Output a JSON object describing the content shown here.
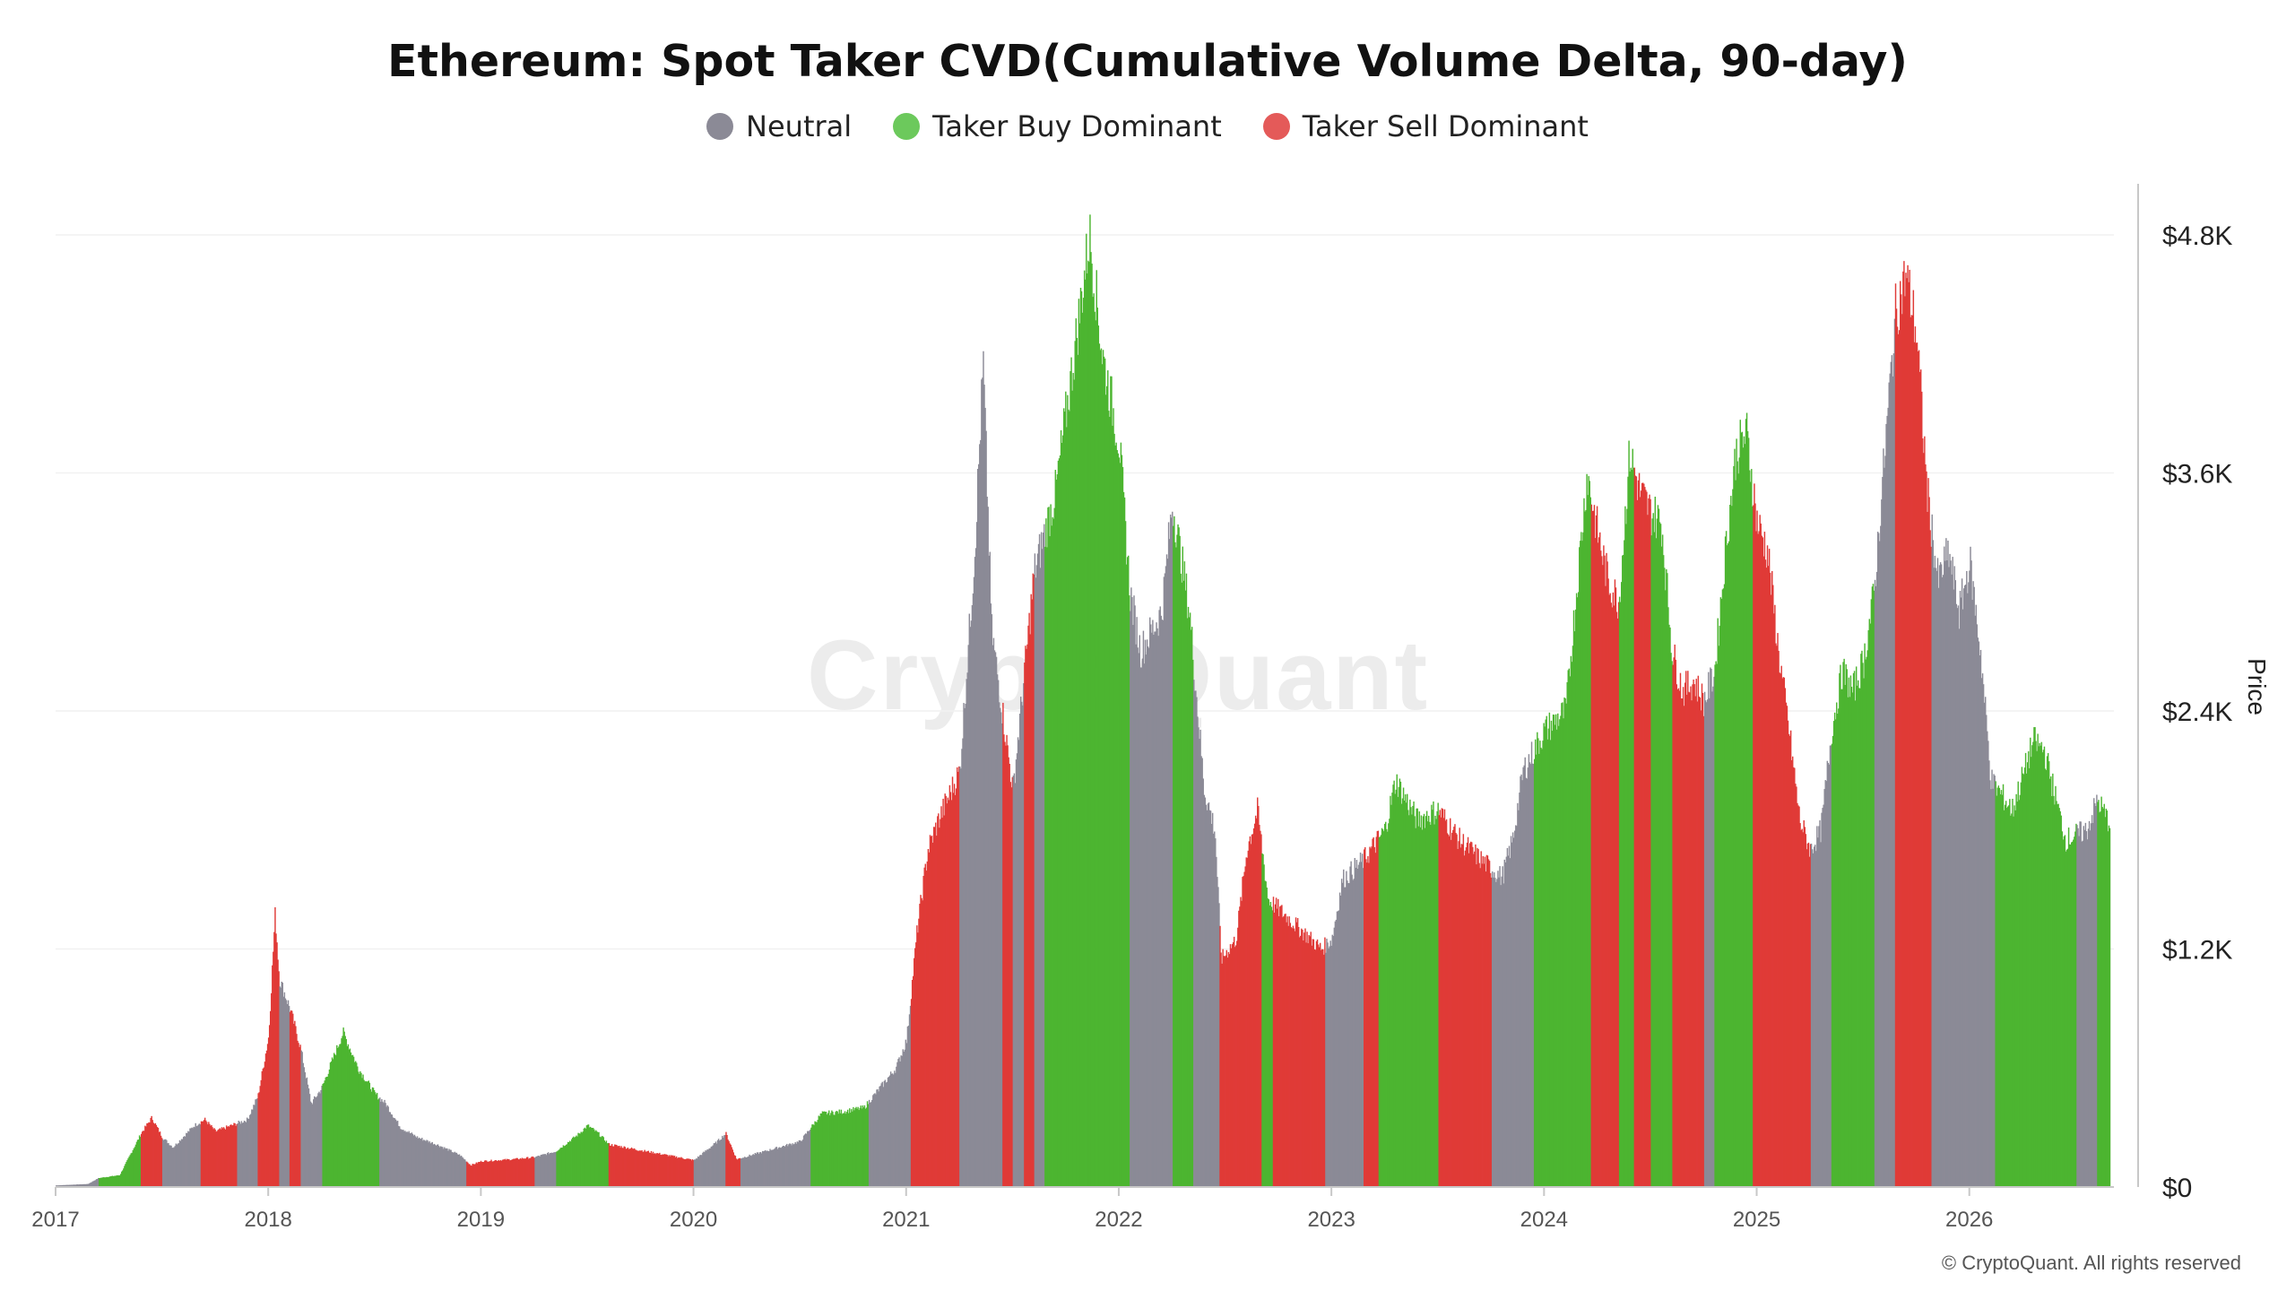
{
  "chart_data": {
    "type": "bar",
    "title": "Ethereum: Spot Taker CVD(Cumulative Volume Delta, 90-day)",
    "ylabel": "Price",
    "xlim": [
      2017.0,
      2026.68
    ],
    "ylim": [
      0,
      4800
    ],
    "yticks": [
      0,
      1200,
      2400,
      3600,
      4800
    ],
    "ytick_labels": [
      "$0",
      "$1.2K",
      "$2.4K",
      "$3.6K",
      "$4.8K"
    ],
    "xtick_labels": [
      "2017",
      "2018",
      "2019",
      "2020",
      "2021",
      "2022",
      "2023",
      "2024",
      "2025",
      "2026"
    ],
    "grid": true,
    "legend_position": "top",
    "series": [
      {
        "name": "Neutral",
        "color": "#8b8a96"
      },
      {
        "name": "Taker Buy Dominant",
        "color": "#4cb530"
      },
      {
        "name": "Taker Sell Dominant",
        "color": "#e03a37"
      }
    ],
    "price_points": [
      [
        2017.0,
        8
      ],
      [
        2017.15,
        15
      ],
      [
        2017.2,
        45
      ],
      [
        2017.3,
        60
      ],
      [
        2017.4,
        270
      ],
      [
        2017.45,
        350
      ],
      [
        2017.5,
        250
      ],
      [
        2017.55,
        200
      ],
      [
        2017.65,
        310
      ],
      [
        2017.7,
        340
      ],
      [
        2017.75,
        280
      ],
      [
        2017.8,
        300
      ],
      [
        2017.9,
        340
      ],
      [
        2017.95,
        460
      ],
      [
        2018.0,
        760
      ],
      [
        2018.03,
        1380
      ],
      [
        2018.05,
        1050
      ],
      [
        2018.1,
        900
      ],
      [
        2018.15,
        700
      ],
      [
        2018.2,
        420
      ],
      [
        2018.25,
        500
      ],
      [
        2018.35,
        780
      ],
      [
        2018.42,
        600
      ],
      [
        2018.5,
        470
      ],
      [
        2018.55,
        420
      ],
      [
        2018.62,
        300
      ],
      [
        2018.7,
        250
      ],
      [
        2018.8,
        210
      ],
      [
        2018.9,
        160
      ],
      [
        2018.95,
        110
      ],
      [
        2019.0,
        130
      ],
      [
        2019.15,
        140
      ],
      [
        2019.25,
        150
      ],
      [
        2019.35,
        180
      ],
      [
        2019.45,
        260
      ],
      [
        2019.5,
        310
      ],
      [
        2019.55,
        270
      ],
      [
        2019.6,
        215
      ],
      [
        2019.75,
        185
      ],
      [
        2019.9,
        155
      ],
      [
        2020.0,
        135
      ],
      [
        2020.1,
        220
      ],
      [
        2020.15,
        270
      ],
      [
        2020.2,
        140
      ],
      [
        2020.3,
        170
      ],
      [
        2020.4,
        200
      ],
      [
        2020.5,
        230
      ],
      [
        2020.6,
        370
      ],
      [
        2020.7,
        380
      ],
      [
        2020.8,
        400
      ],
      [
        2020.95,
        600
      ],
      [
        2021.0,
        740
      ],
      [
        2021.05,
        1300
      ],
      [
        2021.1,
        1700
      ],
      [
        2021.15,
        1850
      ],
      [
        2021.25,
        2100
      ],
      [
        2021.32,
        3200
      ],
      [
        2021.36,
        4150
      ],
      [
        2021.4,
        2800
      ],
      [
        2021.45,
        2400
      ],
      [
        2021.5,
        2000
      ],
      [
        2021.6,
        3100
      ],
      [
        2021.65,
        3300
      ],
      [
        2021.7,
        3500
      ],
      [
        2021.8,
        4300
      ],
      [
        2021.86,
        4800
      ],
      [
        2021.92,
        4200
      ],
      [
        2022.0,
        3750
      ],
      [
        2022.05,
        3000
      ],
      [
        2022.1,
        2700
      ],
      [
        2022.2,
        2900
      ],
      [
        2022.25,
        3450
      ],
      [
        2022.33,
        2900
      ],
      [
        2022.4,
        2000
      ],
      [
        2022.45,
        1800
      ],
      [
        2022.48,
        1150
      ],
      [
        2022.55,
        1250
      ],
      [
        2022.6,
        1700
      ],
      [
        2022.65,
        1900
      ],
      [
        2022.7,
        1450
      ],
      [
        2022.75,
        1400
      ],
      [
        2022.85,
        1300
      ],
      [
        2022.9,
        1250
      ],
      [
        2022.95,
        1200
      ],
      [
        2023.0,
        1250
      ],
      [
        2023.05,
        1550
      ],
      [
        2023.15,
        1650
      ],
      [
        2023.25,
        1800
      ],
      [
        2023.3,
        2050
      ],
      [
        2023.4,
        1850
      ],
      [
        2023.5,
        1900
      ],
      [
        2023.6,
        1750
      ],
      [
        2023.7,
        1650
      ],
      [
        2023.8,
        1560
      ],
      [
        2023.85,
        1750
      ],
      [
        2023.9,
        2100
      ],
      [
        2024.0,
        2300
      ],
      [
        2024.1,
        2400
      ],
      [
        2024.15,
        3000
      ],
      [
        2024.2,
        3600
      ],
      [
        2024.25,
        3300
      ],
      [
        2024.3,
        3050
      ],
      [
        2024.35,
        2950
      ],
      [
        2024.4,
        3700
      ],
      [
        2024.45,
        3500
      ],
      [
        2024.5,
        3400
      ],
      [
        2024.55,
        3350
      ],
      [
        2024.6,
        2700
      ],
      [
        2024.65,
        2500
      ],
      [
        2024.7,
        2550
      ],
      [
        2024.75,
        2450
      ],
      [
        2024.8,
        2600
      ],
      [
        2024.85,
        3200
      ],
      [
        2024.9,
        3700
      ],
      [
        2024.95,
        3800
      ],
      [
        2025.0,
        3350
      ],
      [
        2025.05,
        3200
      ],
      [
        2025.1,
        2700
      ],
      [
        2025.15,
        2300
      ],
      [
        2025.2,
        1850
      ],
      [
        2025.25,
        1700
      ],
      [
        2025.3,
        1800
      ],
      [
        2025.35,
        2300
      ],
      [
        2025.4,
        2600
      ],
      [
        2025.45,
        2500
      ],
      [
        2025.5,
        2650
      ],
      [
        2025.55,
        3000
      ],
      [
        2025.6,
        3700
      ],
      [
        2025.65,
        4400
      ],
      [
        2025.7,
        4600
      ],
      [
        2025.75,
        4300
      ],
      [
        2025.8,
        3500
      ],
      [
        2025.85,
        3050
      ],
      [
        2025.9,
        3200
      ],
      [
        2025.95,
        2900
      ],
      [
        2026.0,
        3150
      ],
      [
        2026.05,
        2700
      ],
      [
        2026.1,
        2050
      ],
      [
        2026.2,
        1900
      ],
      [
        2026.3,
        2250
      ],
      [
        2026.35,
        2200
      ],
      [
        2026.45,
        1750
      ],
      [
        2026.55,
        1800
      ],
      [
        2026.6,
        1950
      ],
      [
        2026.65,
        1850
      ]
    ],
    "segments": [
      [
        2017.0,
        2017.2,
        "Neutral"
      ],
      [
        2017.2,
        2017.4,
        "Taker Buy Dominant"
      ],
      [
        2017.4,
        2017.5,
        "Taker Sell Dominant"
      ],
      [
        2017.5,
        2017.68,
        "Neutral"
      ],
      [
        2017.68,
        2017.85,
        "Taker Sell Dominant"
      ],
      [
        2017.85,
        2017.95,
        "Neutral"
      ],
      [
        2017.95,
        2018.05,
        "Taker Sell Dominant"
      ],
      [
        2018.05,
        2018.1,
        "Neutral"
      ],
      [
        2018.1,
        2018.15,
        "Taker Sell Dominant"
      ],
      [
        2018.15,
        2018.25,
        "Neutral"
      ],
      [
        2018.25,
        2018.52,
        "Taker Buy Dominant"
      ],
      [
        2018.52,
        2018.93,
        "Neutral"
      ],
      [
        2018.93,
        2019.25,
        "Taker Sell Dominant"
      ],
      [
        2019.25,
        2019.35,
        "Neutral"
      ],
      [
        2019.35,
        2019.6,
        "Taker Buy Dominant"
      ],
      [
        2019.6,
        2020.0,
        "Taker Sell Dominant"
      ],
      [
        2020.0,
        2020.15,
        "Neutral"
      ],
      [
        2020.15,
        2020.22,
        "Taker Sell Dominant"
      ],
      [
        2020.22,
        2020.55,
        "Neutral"
      ],
      [
        2020.55,
        2020.82,
        "Taker Buy Dominant"
      ],
      [
        2020.82,
        2021.02,
        "Neutral"
      ],
      [
        2021.02,
        2021.25,
        "Taker Sell Dominant"
      ],
      [
        2021.25,
        2021.45,
        "Neutral"
      ],
      [
        2021.45,
        2021.5,
        "Taker Sell Dominant"
      ],
      [
        2021.5,
        2021.55,
        "Neutral"
      ],
      [
        2021.55,
        2021.6,
        "Taker Sell Dominant"
      ],
      [
        2021.6,
        2021.65,
        "Neutral"
      ],
      [
        2021.65,
        2022.05,
        "Taker Buy Dominant"
      ],
      [
        2022.05,
        2022.25,
        "Neutral"
      ],
      [
        2022.25,
        2022.35,
        "Taker Buy Dominant"
      ],
      [
        2022.35,
        2022.47,
        "Neutral"
      ],
      [
        2022.47,
        2022.67,
        "Taker Sell Dominant"
      ],
      [
        2022.67,
        2022.72,
        "Taker Buy Dominant"
      ],
      [
        2022.72,
        2022.97,
        "Taker Sell Dominant"
      ],
      [
        2022.97,
        2023.15,
        "Neutral"
      ],
      [
        2023.15,
        2023.22,
        "Taker Sell Dominant"
      ],
      [
        2023.22,
        2023.5,
        "Taker Buy Dominant"
      ],
      [
        2023.5,
        2023.75,
        "Taker Sell Dominant"
      ],
      [
        2023.75,
        2023.95,
        "Neutral"
      ],
      [
        2023.95,
        2024.22,
        "Taker Buy Dominant"
      ],
      [
        2024.22,
        2024.35,
        "Taker Sell Dominant"
      ],
      [
        2024.35,
        2024.42,
        "Taker Buy Dominant"
      ],
      [
        2024.42,
        2024.5,
        "Taker Sell Dominant"
      ],
      [
        2024.5,
        2024.6,
        "Taker Buy Dominant"
      ],
      [
        2024.6,
        2024.75,
        "Taker Sell Dominant"
      ],
      [
        2024.75,
        2024.8,
        "Neutral"
      ],
      [
        2024.8,
        2024.98,
        "Taker Buy Dominant"
      ],
      [
        2024.98,
        2025.25,
        "Taker Sell Dominant"
      ],
      [
        2025.25,
        2025.35,
        "Neutral"
      ],
      [
        2025.35,
        2025.55,
        "Taker Buy Dominant"
      ],
      [
        2025.55,
        2025.65,
        "Neutral"
      ],
      [
        2025.65,
        2025.82,
        "Taker Sell Dominant"
      ],
      [
        2025.82,
        2026.12,
        "Neutral"
      ],
      [
        2026.12,
        2026.5,
        "Taker Buy Dominant"
      ],
      [
        2026.5,
        2026.6,
        "Neutral"
      ],
      [
        2026.6,
        2026.66,
        "Taker Buy Dominant"
      ]
    ]
  },
  "legend": {
    "neutral_label": "Neutral",
    "buy_label": "Taker Buy Dominant",
    "sell_label": "Taker Sell Dominant",
    "neutral_color": "#8b8a96",
    "buy_color": "#4cb530",
    "sell_color": "#e03a37"
  },
  "watermark": "CryptoQuant",
  "copyright": "© CryptoQuant. All rights reserved"
}
